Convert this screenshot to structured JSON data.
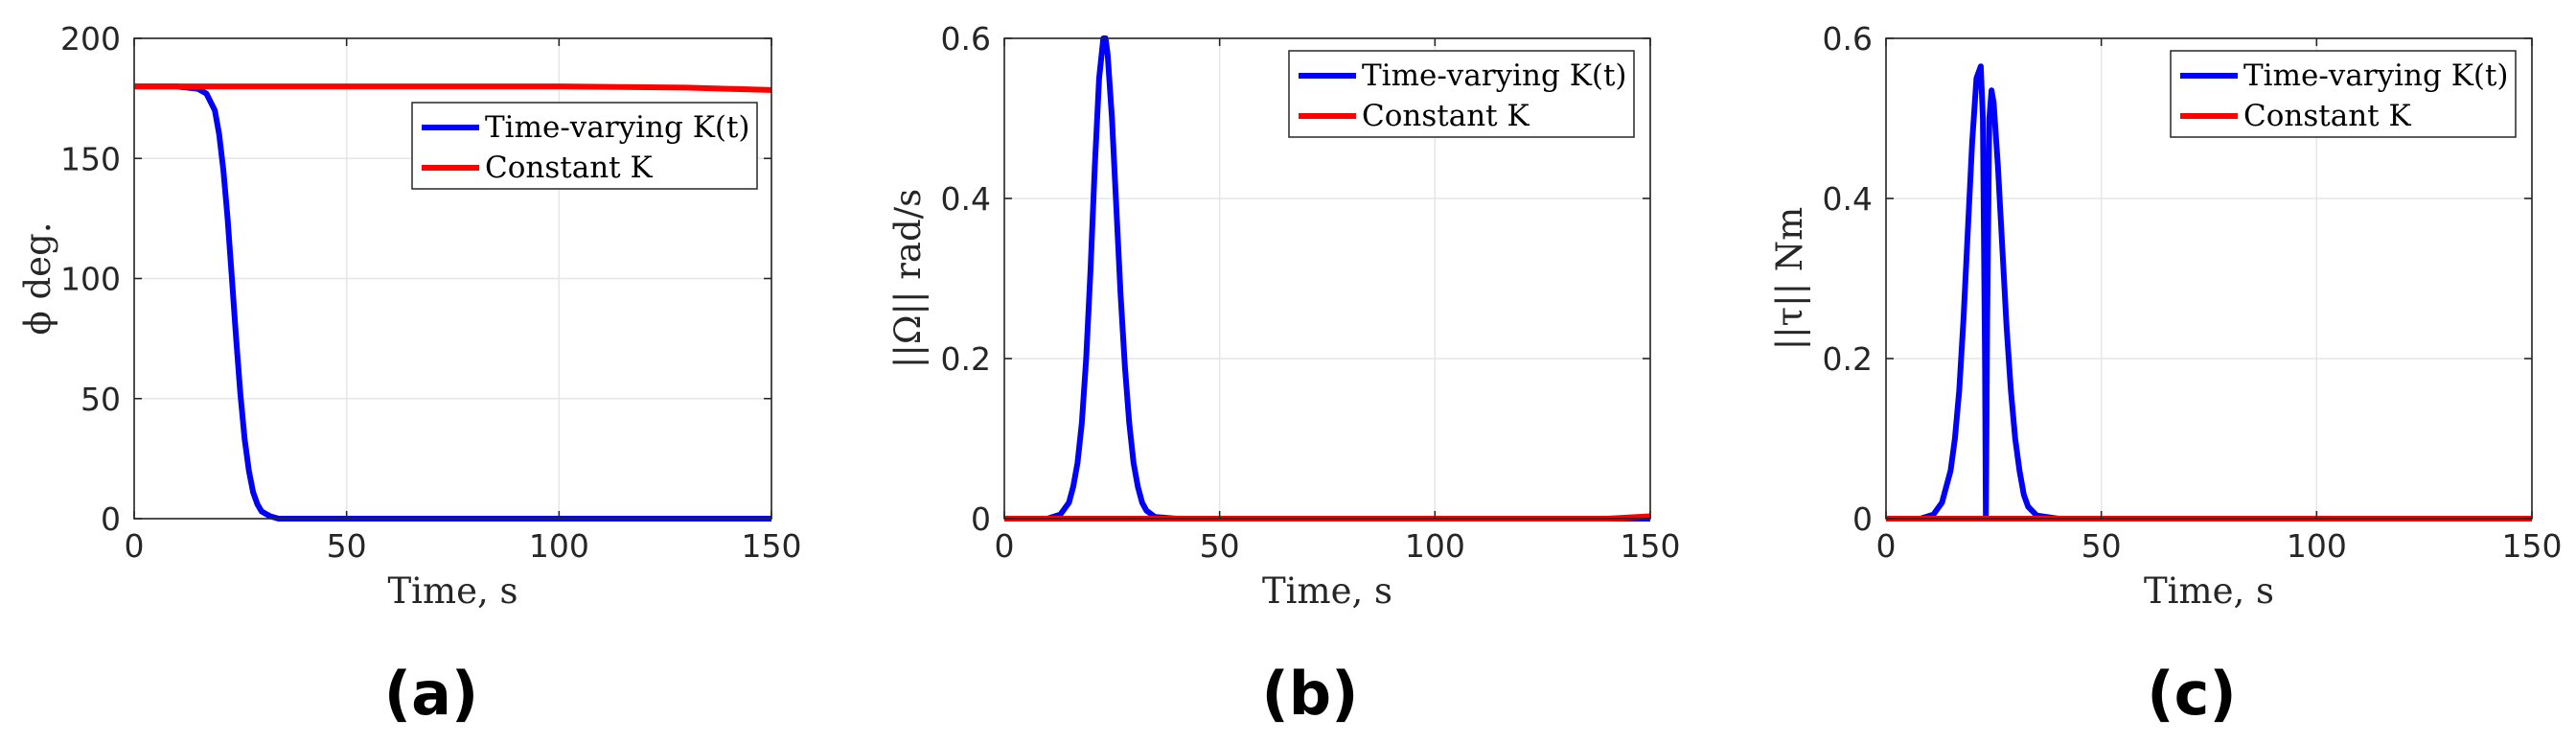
{
  "colors": {
    "series_1": "#0000ff",
    "series_2": "#ff0000",
    "grid": "#e6e6e6",
    "axis": "#262626"
  },
  "chart_data": [
    {
      "type": "line",
      "panel_label": "(a)",
      "xlabel": "Time, s",
      "ylabel": "ϕ deg.",
      "xlim": [
        0,
        150
      ],
      "ylim": [
        0,
        200
      ],
      "xticks": [
        0,
        50,
        100,
        150
      ],
      "yticks": [
        0,
        50,
        100,
        150,
        200
      ],
      "xtick_labels": [
        "0",
        "50",
        "100",
        "150"
      ],
      "ytick_labels": [
        "0",
        "50",
        "100",
        "150",
        "200"
      ],
      "grid": true,
      "legend_position": "top-right",
      "series": [
        {
          "name": "Time-varying K(t)",
          "color": "#0000ff",
          "x": [
            0,
            10,
            15,
            17,
            19,
            20,
            21,
            22,
            23,
            24,
            25,
            26,
            27,
            28,
            29,
            30,
            32,
            34,
            40,
            150
          ],
          "y": [
            180,
            180,
            179,
            177,
            170,
            160,
            145,
            125,
            100,
            75,
            52,
            33,
            20,
            11,
            6,
            3,
            1,
            0,
            0,
            0
          ]
        },
        {
          "name": "Constant K",
          "color": "#ff0000",
          "x": [
            0,
            50,
            100,
            130,
            150
          ],
          "y": [
            180,
            180,
            180,
            179.5,
            178.5
          ]
        }
      ]
    },
    {
      "type": "line",
      "panel_label": "(b)",
      "xlabel": "Time, s",
      "ylabel": "||Ω|| rad/s",
      "xlim": [
        0,
        150
      ],
      "ylim": [
        0,
        0.6
      ],
      "xticks": [
        0,
        50,
        100,
        150
      ],
      "yticks": [
        0,
        0.2,
        0.4,
        0.6
      ],
      "xtick_labels": [
        "0",
        "50",
        "100",
        "150"
      ],
      "ytick_labels": [
        "0",
        "0.2",
        "0.4",
        "0.6"
      ],
      "grid": true,
      "legend_position": "top-right",
      "series": [
        {
          "name": "Time-varying K(t)",
          "color": "#0000ff",
          "x": [
            0,
            10,
            13,
            15,
            16,
            17,
            18,
            19,
            20,
            21,
            22,
            23,
            23.5,
            24,
            25,
            26,
            27,
            28,
            29,
            30,
            31,
            32,
            33,
            35,
            40,
            150
          ],
          "y": [
            0,
            0,
            0.005,
            0.02,
            0.04,
            0.07,
            0.12,
            0.2,
            0.31,
            0.44,
            0.55,
            0.6,
            0.6,
            0.58,
            0.5,
            0.39,
            0.28,
            0.19,
            0.12,
            0.07,
            0.04,
            0.02,
            0.01,
            0.002,
            0,
            0
          ]
        },
        {
          "name": "Constant K",
          "color": "#ff0000",
          "x": [
            0,
            140,
            150
          ],
          "y": [
            0,
            0,
            0.003
          ]
        }
      ]
    },
    {
      "type": "line",
      "panel_label": "(c)",
      "xlabel": "Time, s",
      "ylabel": "||τ|| Nm",
      "xlim": [
        0,
        150
      ],
      "ylim": [
        0,
        0.6
      ],
      "xticks": [
        0,
        50,
        100,
        150
      ],
      "yticks": [
        0,
        0.2,
        0.4,
        0.6
      ],
      "xtick_labels": [
        "0",
        "50",
        "100",
        "150"
      ],
      "ytick_labels": [
        "0",
        "0.2",
        "0.4",
        "0.6"
      ],
      "grid": true,
      "legend_position": "top-right",
      "series": [
        {
          "name": "Time-varying K(t)",
          "color": "#0000ff",
          "x": [
            0,
            8,
            11,
            13,
            15,
            16,
            17,
            18,
            19,
            20,
            21,
            22,
            22.5,
            23,
            23.2,
            23.5,
            24,
            24.5,
            25,
            26,
            27,
            28,
            29,
            30,
            31,
            32,
            33,
            35,
            40,
            150
          ],
          "y": [
            0,
            0,
            0.005,
            0.02,
            0.06,
            0.1,
            0.16,
            0.25,
            0.36,
            0.47,
            0.55,
            0.565,
            0.5,
            0.2,
            0,
            0.25,
            0.5,
            0.535,
            0.52,
            0.44,
            0.34,
            0.24,
            0.16,
            0.1,
            0.06,
            0.03,
            0.015,
            0.004,
            0,
            0
          ]
        },
        {
          "name": "Constant K",
          "color": "#ff0000",
          "x": [
            0,
            150
          ],
          "y": [
            0,
            0
          ]
        }
      ]
    }
  ]
}
